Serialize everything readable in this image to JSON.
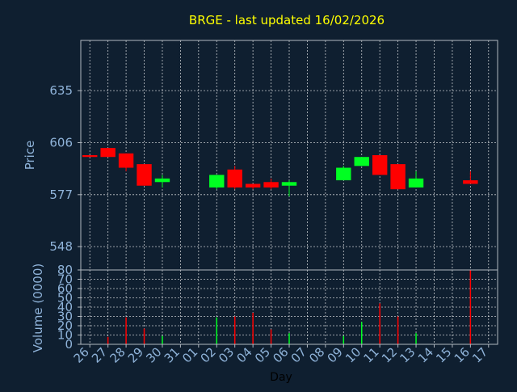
{
  "title": "BRGE - last updated 16/02/2026",
  "colors": {
    "background": "#0f1f30",
    "title": "#ffff00",
    "axis_text": "#8fb3d9",
    "xlabel": "#000000",
    "frame": "#b0b8c0",
    "grid": "#ffffff",
    "up": "#00ff22",
    "down": "#ff0000"
  },
  "chart_data": [
    {
      "type": "candlestick",
      "ylabel": "Price",
      "yticks": [
        548,
        577,
        606,
        635
      ],
      "ylim": [
        535,
        663
      ],
      "grid": true,
      "x_categories": [
        "26",
        "27",
        "28",
        "29",
        "30",
        "31",
        "01",
        "02",
        "03",
        "04",
        "05",
        "06",
        "07",
        "08",
        "09",
        "10",
        "11",
        "12",
        "13",
        "14",
        "15",
        "16",
        "17"
      ],
      "candles": [
        {
          "x": "26",
          "open": 599,
          "close": 598,
          "high": 599,
          "low": 598
        },
        {
          "x": "27",
          "open": 603,
          "close": 598,
          "high": 603,
          "low": 598
        },
        {
          "x": "28",
          "open": 600,
          "close": 592,
          "high": 600,
          "low": 590
        },
        {
          "x": "29",
          "open": 594,
          "close": 582,
          "high": 594,
          "low": 582
        },
        {
          "x": "30",
          "open": 584,
          "close": 586,
          "high": 588,
          "low": 581
        },
        {
          "x": "02",
          "open": 581,
          "close": 588,
          "high": 588,
          "low": 580
        },
        {
          "x": "03",
          "open": 591,
          "close": 581,
          "high": 593,
          "low": 580
        },
        {
          "x": "04",
          "open": 583,
          "close": 581,
          "high": 583,
          "low": 580
        },
        {
          "x": "05",
          "open": 584,
          "close": 581,
          "high": 586,
          "low": 580
        },
        {
          "x": "06",
          "open": 582,
          "close": 584,
          "high": 585,
          "low": 576
        },
        {
          "x": "09",
          "open": 585,
          "close": 592,
          "high": 593,
          "low": 585
        },
        {
          "x": "10",
          "open": 593,
          "close": 598,
          "high": 598,
          "low": 593
        },
        {
          "x": "11",
          "open": 599,
          "close": 588,
          "high": 599,
          "low": 588
        },
        {
          "x": "12",
          "open": 594,
          "close": 580,
          "high": 594,
          "low": 580
        },
        {
          "x": "13",
          "open": 581,
          "close": 586,
          "high": 590,
          "low": 581
        },
        {
          "x": "16",
          "open": 585,
          "close": 583,
          "high": 590,
          "low": 583
        }
      ]
    },
    {
      "type": "bar",
      "ylabel": "Volume (0000)",
      "xlabel": "Day",
      "yticks": [
        0,
        10,
        20,
        30,
        40,
        50,
        60,
        70,
        80
      ],
      "ylim": [
        0,
        80
      ],
      "grid": true,
      "x_categories": [
        "26",
        "27",
        "28",
        "29",
        "30",
        "31",
        "01",
        "02",
        "03",
        "04",
        "05",
        "06",
        "07",
        "08",
        "09",
        "10",
        "11",
        "12",
        "13",
        "14",
        "15",
        "16",
        "17"
      ],
      "bars": [
        {
          "x": "27",
          "value": 8,
          "direction": "down"
        },
        {
          "x": "28",
          "value": 29,
          "direction": "down"
        },
        {
          "x": "29",
          "value": 17,
          "direction": "down"
        },
        {
          "x": "30",
          "value": 9,
          "direction": "up"
        },
        {
          "x": "02",
          "value": 29,
          "direction": "up"
        },
        {
          "x": "03",
          "value": 30,
          "direction": "down"
        },
        {
          "x": "04",
          "value": 34,
          "direction": "down"
        },
        {
          "x": "05",
          "value": 16,
          "direction": "down"
        },
        {
          "x": "06",
          "value": 12,
          "direction": "up"
        },
        {
          "x": "09",
          "value": 9,
          "direction": "up"
        },
        {
          "x": "10",
          "value": 24,
          "direction": "up"
        },
        {
          "x": "11",
          "value": 44,
          "direction": "down"
        },
        {
          "x": "12",
          "value": 30,
          "direction": "down"
        },
        {
          "x": "13",
          "value": 12,
          "direction": "up"
        },
        {
          "x": "16",
          "value": 80,
          "direction": "down"
        }
      ]
    }
  ]
}
